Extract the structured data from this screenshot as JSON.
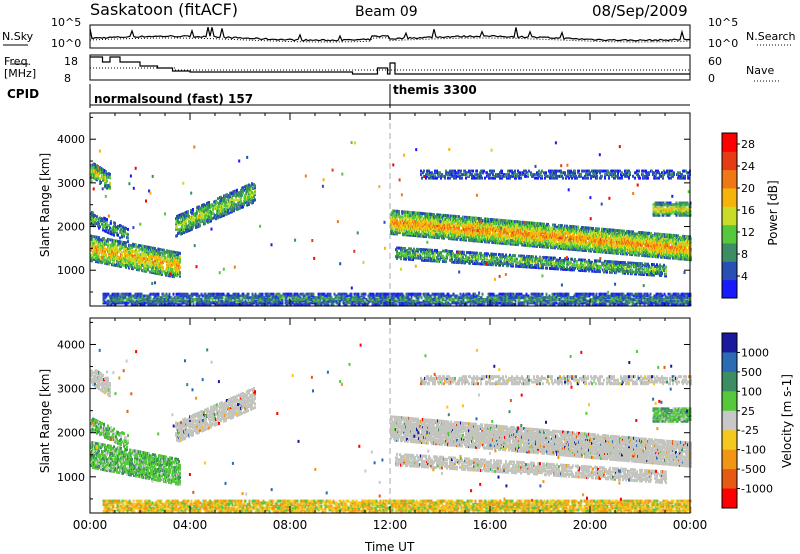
{
  "header": {
    "station": "Saskatoon (fitACF)",
    "beam": "Beam 09",
    "date": "08/Sep/2009"
  },
  "noise_panel": {
    "left_label": "N.Sky",
    "right_label": "N.Search",
    "left_ticks": [
      "10^5",
      "10^0"
    ],
    "right_ticks": [
      "10^5",
      "10^0"
    ]
  },
  "freq_panel": {
    "left_label_1": "Freq.",
    "left_label_2": "[MHz]",
    "right_label": "Nave",
    "left_ticks": [
      "18",
      "8"
    ],
    "right_ticks": [
      "60",
      "0"
    ]
  },
  "cpid": {
    "label": "CPID",
    "mode_1": "normalsound (fast) 157",
    "mode_2": "themis 3300"
  },
  "colors": {
    "power_scale": [
      "#1a1aff",
      "#2850b4",
      "#3c8c64",
      "#55c83c",
      "#c8dc28",
      "#f5b40a",
      "#f07814",
      "#e63c14",
      "#ff0000"
    ],
    "velocity_scale": [
      "#1a1a9c",
      "#2a6cb4",
      "#3c8c64",
      "#55c83c",
      "#c8c8c8",
      "#f5c81e",
      "#f09614",
      "#e65a14",
      "#ff0000"
    ],
    "ground_scatter": "#c4c4be"
  },
  "chart_data": [
    {
      "type": "heatmap",
      "title": "Power",
      "xlabel": "Time UT",
      "ylabel": "Slant Range [km]",
      "x_ticks": [
        "00:00",
        "04:00",
        "08:00",
        "12:00",
        "16:00",
        "20:00",
        "00:00"
      ],
      "xlim_hours": [
        0,
        24
      ],
      "y_ticks": [
        "1000",
        "2000",
        "3000",
        "4000"
      ],
      "ylim": [
        180,
        4600
      ],
      "colorbar_label": "Power [dB]",
      "colorbar_ticks": [
        "4",
        "8",
        "12",
        "16",
        "20",
        "24",
        "28"
      ],
      "colorbar_range": [
        0,
        30
      ]
    },
    {
      "type": "heatmap",
      "title": "Velocity",
      "xlabel": "Time UT",
      "ylabel": "Slant Range [km]",
      "x_ticks": [
        "00:00",
        "04:00",
        "08:00",
        "12:00",
        "16:00",
        "20:00",
        "00:00"
      ],
      "xlim_hours": [
        0,
        24
      ],
      "y_ticks": [
        "1000",
        "2000",
        "3000",
        "4000"
      ],
      "ylim": [
        180,
        4600
      ],
      "colorbar_label": "Velocity [m s-1]",
      "colorbar_ticks": [
        "1000",
        "500",
        "100",
        "25",
        "-25",
        "-100",
        "-500",
        "-1000"
      ]
    }
  ]
}
